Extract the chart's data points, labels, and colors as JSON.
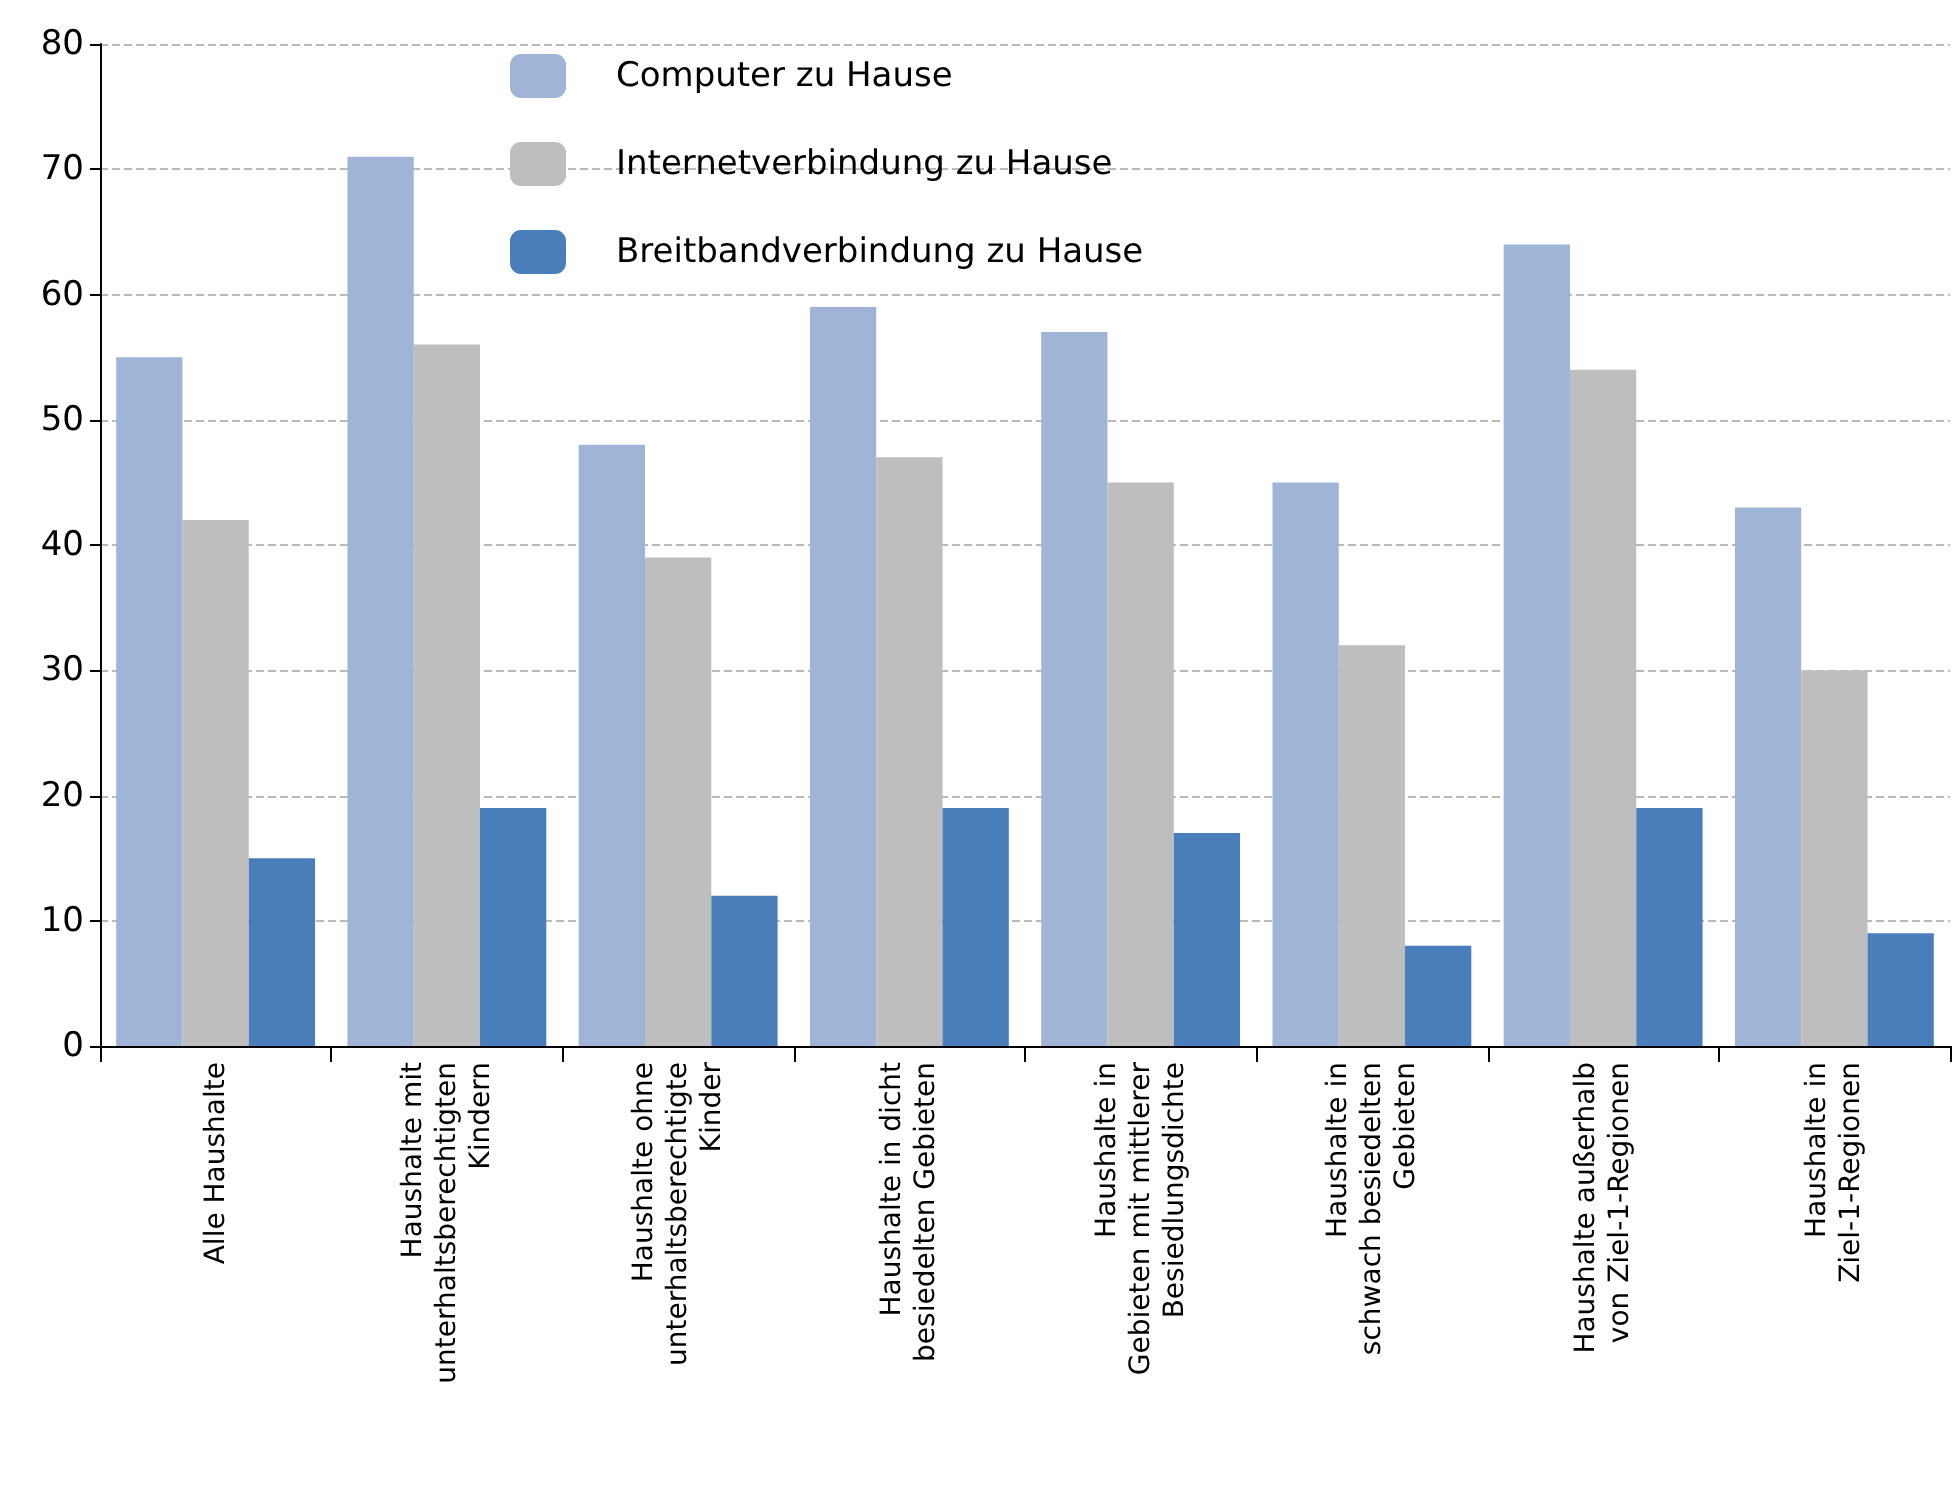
{
  "chart_data": {
    "type": "bar",
    "categories": [
      "Alle Haushalte",
      "Haushalte mit\nunterhaltsberechtigten\nKindern",
      "Haushalte ohne\nunterhaltsberechtigte\nKinder",
      "Haushalte in dicht\nbesiedelten Gebieten",
      "Haushalte in\nGebieten mit mittlerer\nBesiedlungsdichte",
      "Haushalte in\nschwach besiedelten\nGebieten",
      "Haushalte außerhalb\nvon Ziel-1-Regionen",
      "Haushalte in\nZiel-1-Regionen"
    ],
    "series": [
      {
        "name": "Computer zu Hause",
        "color": "#a0b4d8",
        "values": [
          55,
          71,
          48,
          59,
          57,
          45,
          64,
          43
        ]
      },
      {
        "name": "Internetverbindung zu Hause",
        "color": "#bebebe",
        "values": [
          42,
          56,
          39,
          47,
          45,
          32,
          54,
          30
        ]
      },
      {
        "name": "Breitbandverbindung zu Hause",
        "color": "#4a7ebb",
        "values": [
          15,
          19,
          12,
          19,
          17,
          8,
          19,
          9
        ]
      }
    ],
    "ylim": [
      0,
      80
    ],
    "yticks": [
      0,
      10,
      20,
      30,
      40,
      50,
      60,
      70,
      80
    ],
    "grid": "y",
    "legend": "top"
  }
}
